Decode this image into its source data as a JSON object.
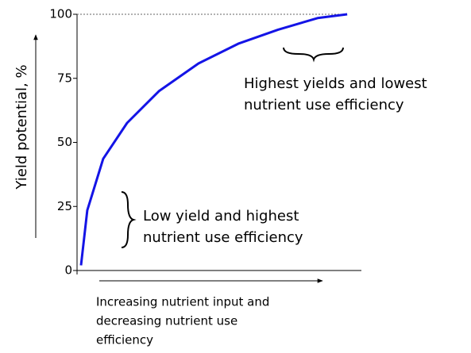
{
  "chart_data": {
    "type": "line",
    "y_label": "Yield potential, %",
    "x_label": [
      "Increasing nutrient input and",
      "decreasing nutrient use",
      "efficiency"
    ],
    "annotations": [
      [
        "Highest yields and lowest",
        "nutrient use efficiency"
      ],
      [
        "Low yield and highest",
        "nutrient use efficiency"
      ]
    ],
    "x": [
      1.4,
      3.6,
      9.2,
      17.6,
      28.8,
      42.7,
      56.7,
      70.7,
      84.6,
      95
    ],
    "series": [
      {
        "name": "Yield potential",
        "color": "#1414e6",
        "values": [
          2,
          23.5,
          43.6,
          57.6,
          70,
          80.8,
          88.5,
          94,
          98.5,
          100
        ]
      }
    ],
    "xlim": [
      0,
      100
    ],
    "ylim": [
      0,
      100
    ],
    "yticks": [
      0,
      25,
      50,
      75,
      100
    ]
  }
}
